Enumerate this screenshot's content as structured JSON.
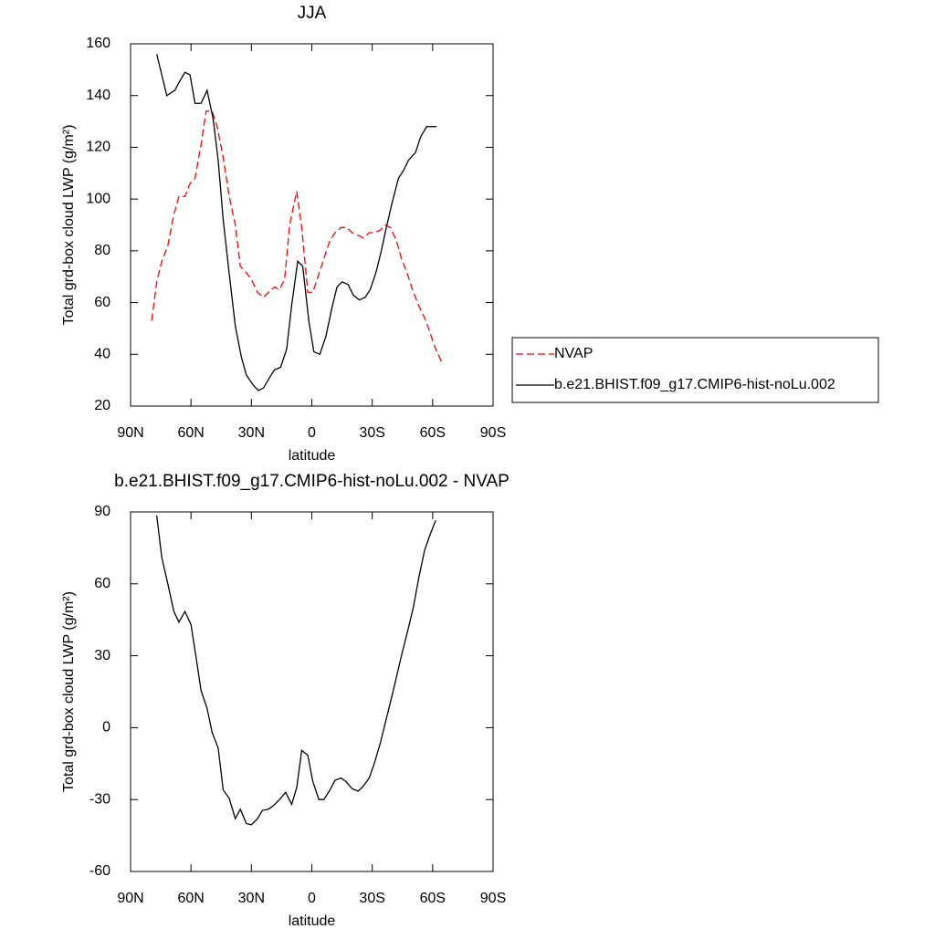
{
  "chart_data": [
    {
      "type": "line",
      "title": "JJA",
      "x_label": "latitude",
      "y_label": "Total grd-box cloud LWP (g/m²)",
      "xlim": [
        90,
        -90
      ],
      "xticks": [
        {
          "value": 90,
          "label": "90N"
        },
        {
          "value": 60,
          "label": "60N"
        },
        {
          "value": 30,
          "label": "30N"
        },
        0,
        {
          "value": -30,
          "label": "30S"
        },
        {
          "value": -60,
          "label": "60S"
        },
        {
          "value": -90,
          "label": "90S"
        }
      ],
      "ylim": [
        20,
        160
      ],
      "yticks": [
        20,
        40,
        60,
        80,
        100,
        120,
        140,
        160
      ],
      "legend": "right",
      "series": [
        {
          "name": "NVAP",
          "color": "#ff0000",
          "dashed": true,
          "x": [
            79.5,
            77,
            74.5,
            71.5,
            68.5,
            66,
            63,
            60.5,
            58,
            55,
            52.5,
            49.5,
            47,
            44,
            41,
            38,
            35.5,
            33,
            30,
            27,
            24,
            21.5,
            18.5,
            16,
            13.5,
            11,
            7.5,
            5,
            2,
            -0.5,
            -3.5,
            -6,
            -9,
            -11.5,
            -14.5,
            -17.5,
            -20,
            -23,
            -25.5,
            -28.5,
            -31,
            -34,
            -36.5,
            -39,
            -42,
            -44.5,
            -47.5,
            -50,
            -53,
            -56,
            -58,
            -61,
            -64.5
          ],
          "values": [
            53,
            68,
            76,
            82,
            94,
            101,
            101,
            106,
            108,
            121,
            134,
            134,
            128,
            116,
            101,
            90,
            74,
            72,
            69,
            64,
            62,
            64,
            66,
            65,
            69,
            90,
            103,
            89,
            64,
            64,
            71,
            77,
            84,
            87,
            89,
            89,
            87,
            86,
            85,
            87,
            87,
            88,
            90,
            89,
            84,
            77,
            71,
            65,
            59,
            54,
            50,
            43,
            37
          ]
        },
        {
          "name": "b.e21.BHIST.f09_g17.CMIP6-hist-noLu.002",
          "color": "#000000",
          "dashed": false,
          "x": [
            77,
            72,
            68,
            66,
            63,
            60.5,
            58,
            55,
            52,
            49,
            46.5,
            44,
            41,
            38,
            35,
            32.5,
            29,
            26.5,
            24,
            21,
            18.5,
            15.5,
            12.5,
            10,
            7,
            4.5,
            1.5,
            -1,
            -4,
            -7,
            -10,
            -12.5,
            -15,
            -18,
            -20.5,
            -23.5,
            -26.5,
            -29,
            -32,
            -34.5,
            -37,
            -40,
            -43,
            -45.5,
            -48,
            -51.5,
            -54,
            -57,
            -59.5,
            -62
          ],
          "values": [
            156,
            140,
            142,
            145,
            149,
            148,
            137,
            137,
            142,
            131,
            115,
            92,
            71,
            51,
            39,
            32,
            28,
            26,
            27,
            31,
            34,
            35,
            42,
            59,
            76,
            74,
            53,
            41,
            40,
            47,
            58,
            66,
            68,
            67,
            63,
            61,
            62,
            65,
            72,
            80,
            89,
            99,
            108,
            111,
            115,
            118,
            124,
            128,
            128,
            128
          ]
        }
      ]
    },
    {
      "type": "line",
      "title": "b.e21.BHIST.f09_g17.CMIP6-hist-noLu.002 - NVAP",
      "x_label": "latitude",
      "y_label": "Total grd-box cloud LWP (g/m²)",
      "xlim": [
        90,
        -90
      ],
      "xticks": [
        {
          "value": 90,
          "label": "90N"
        },
        {
          "value": 60,
          "label": "60N"
        },
        {
          "value": 30,
          "label": "30N"
        },
        0,
        {
          "value": -30,
          "label": "30S"
        },
        {
          "value": -60,
          "label": "60S"
        },
        {
          "value": -90,
          "label": "90S"
        }
      ],
      "ylim": [
        -60,
        90
      ],
      "yticks": [
        -60,
        -30,
        0,
        30,
        60,
        90
      ],
      "series": [
        {
          "color": "#000000",
          "dashed": false,
          "x": [
            77,
            74.5,
            71.5,
            68.5,
            66,
            63,
            60,
            57.5,
            55,
            52,
            49.5,
            46.5,
            44,
            41,
            38,
            35.5,
            32.5,
            30,
            27,
            24.5,
            21.5,
            19,
            16,
            13,
            10,
            7.5,
            5,
            2,
            -0.5,
            -3.5,
            -6,
            -9,
            -11.5,
            -14.5,
            -17,
            -20,
            -23,
            -25.5,
            -28.5,
            -31,
            -34,
            -36.5,
            -39,
            -42,
            -44.5,
            -47.5,
            -50.5,
            -53,
            -56,
            -58.5,
            -61.5
          ],
          "values": [
            88.5,
            71,
            60,
            48.5,
            44,
            48.5,
            43,
            29.5,
            15.5,
            8,
            -2,
            -8.5,
            -26,
            -29.5,
            -38,
            -34,
            -40,
            -40.5,
            -38,
            -34.5,
            -34,
            -32.5,
            -30,
            -27,
            -32,
            -25,
            -9.5,
            -11.5,
            -22.5,
            -30,
            -30,
            -26,
            -22,
            -21,
            -22.5,
            -25.5,
            -26.5,
            -24.5,
            -21,
            -15,
            -6.5,
            2,
            10.5,
            21,
            30,
            40,
            50.5,
            62,
            74,
            80,
            86.5
          ]
        }
      ]
    }
  ]
}
